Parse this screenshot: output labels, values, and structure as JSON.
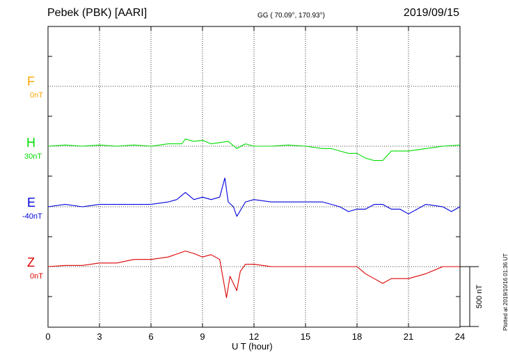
{
  "header": {
    "title": "Pebek (PBK)  [AARI]",
    "coords": "GG ( 70.09°, 170.93°)",
    "date": "2019/09/15"
  },
  "footer": {
    "plotted": "Plotted at 2019/10/16 01:36 UT"
  },
  "chart_data": {
    "type": "line",
    "title": "Pebek (PBK)  [AARI]",
    "xlabel": "U T (hour)",
    "xlim": [
      0,
      24
    ],
    "x_ticks": [
      "0",
      "3",
      "6",
      "9",
      "12",
      "15",
      "18",
      "21",
      "24"
    ],
    "scale_bar": "500 nT",
    "grid": true,
    "series": [
      {
        "name": "F",
        "offset_label": "0nT",
        "color": "#ffa500",
        "x": [],
        "values": []
      },
      {
        "name": "H",
        "offset_label": "30nT",
        "color": "#00dd00",
        "x": [
          0,
          1,
          2,
          3,
          4,
          5,
          6,
          7,
          7.8,
          8,
          8.5,
          9,
          9.5,
          10,
          10.5,
          11,
          11.5,
          12,
          13,
          14,
          15,
          16,
          16.5,
          17,
          17.5,
          18,
          18.5,
          19,
          19.5,
          20,
          21,
          22,
          23,
          24
        ],
        "values": [
          0,
          10,
          0,
          10,
          0,
          10,
          0,
          20,
          20,
          60,
          40,
          50,
          20,
          30,
          40,
          -20,
          20,
          0,
          0,
          10,
          0,
          -20,
          -20,
          -40,
          -60,
          -60,
          -100,
          -120,
          -120,
          -40,
          -40,
          -20,
          0,
          10
        ]
      },
      {
        "name": "E",
        "offset_label": "-40nT",
        "color": "#0000dd",
        "x": [
          0,
          1,
          2,
          3,
          4,
          5,
          6,
          7,
          7.5,
          8,
          8.5,
          9,
          9.5,
          10,
          10.3,
          10.5,
          10.8,
          11,
          11.5,
          12,
          13,
          14,
          15,
          16,
          17,
          17.5,
          18,
          18.5,
          19,
          19.5,
          20,
          20.5,
          21,
          22,
          23,
          23.5,
          24
        ],
        "values": [
          0,
          20,
          0,
          20,
          20,
          20,
          20,
          40,
          60,
          120,
          60,
          80,
          60,
          80,
          240,
          40,
          0,
          -80,
          40,
          60,
          40,
          40,
          40,
          40,
          0,
          -40,
          -20,
          -20,
          20,
          20,
          -20,
          -20,
          -60,
          20,
          0,
          -40,
          0
        ]
      },
      {
        "name": "Z",
        "offset_label": "0nT",
        "color": "#dd0000",
        "x": [
          0,
          1,
          2,
          3,
          4,
          5,
          6,
          7,
          8,
          8.5,
          9,
          9.5,
          10,
          10.4,
          10.6,
          11,
          11.2,
          11.5,
          12,
          13,
          14,
          15,
          16,
          17,
          18,
          18.5,
          19,
          19.5,
          20,
          21,
          22,
          23,
          24
        ],
        "values": [
          0,
          10,
          10,
          30,
          30,
          60,
          60,
          80,
          130,
          110,
          80,
          100,
          60,
          -260,
          -80,
          -200,
          -40,
          20,
          20,
          0,
          0,
          0,
          0,
          0,
          0,
          -60,
          -100,
          -140,
          -100,
          -100,
          -60,
          0,
          0
        ]
      }
    ]
  }
}
